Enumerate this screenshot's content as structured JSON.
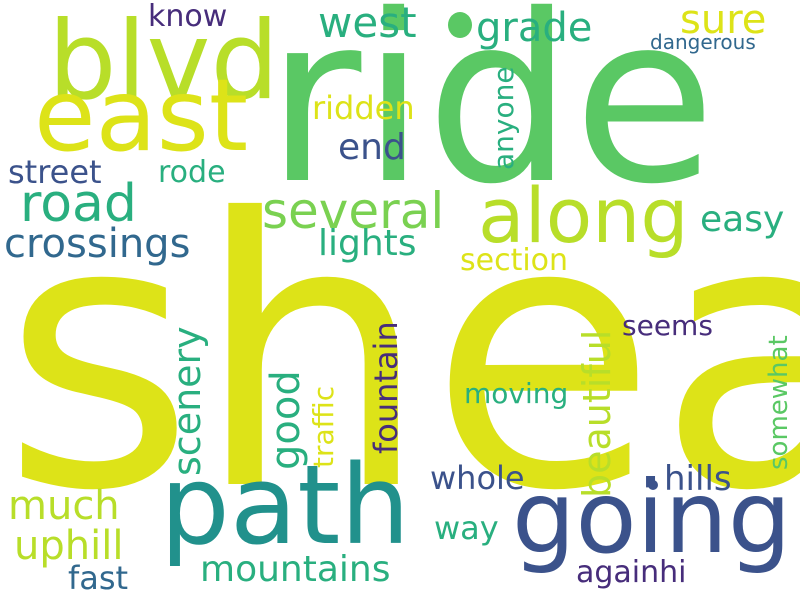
{
  "colors": {
    "background": "#ffffff",
    "yellow": "#dde318",
    "lime": "#b8de29",
    "green": "#5ac864",
    "green_light": "#7ad151",
    "teal_green": "#29af7f",
    "teal": "#21918c",
    "blue": "#3b528b",
    "blue_dark": "#31688e",
    "purple": "#472d7b",
    "purple_dark": "#440154"
  },
  "words": {
    "shea": "shea",
    "ride": "ride",
    "path": "path",
    "going": "going",
    "blvd": "blvd",
    "east": "east",
    "along": "along",
    "several": "several",
    "road": "road",
    "crossings": "crossings",
    "lights": "lights",
    "west": "west",
    "grade": "grade",
    "sure": "sure",
    "know": "know",
    "dangerous": "dangerous",
    "ridden": "ridden",
    "end": "end",
    "street": "street",
    "rode": "rode",
    "anyone": "anyone",
    "easy": "easy",
    "section": "section",
    "scenery": "scenery",
    "good": "good",
    "traffic": "traffic",
    "fountain": "fountain",
    "beautiful": "beautiful",
    "seems": "seems",
    "somewhat": "somewhat",
    "moving": "moving",
    "whole": "whole",
    "hills": "hills",
    "much": "much",
    "uphill": "uphill",
    "way": "way",
    "mountains": "mountains",
    "fast": "fast",
    "againhi": "againhi"
  }
}
